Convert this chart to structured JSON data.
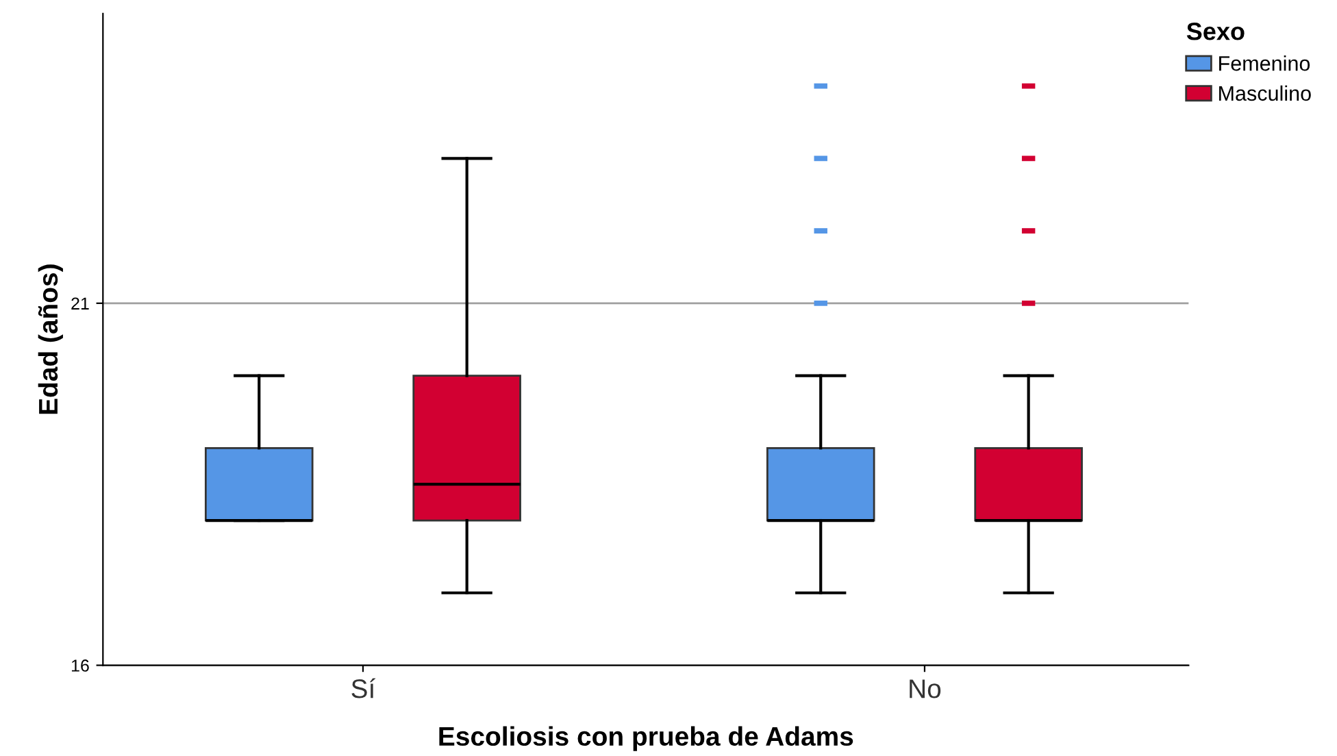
{
  "chart_data": {
    "type": "box",
    "xlabel": "Escoliosis con prueba de Adams",
    "ylabel": "Edad (años)",
    "legend_title": "Sexo",
    "categories": [
      "Sí",
      "No"
    ],
    "ylim": [
      16,
      25
    ],
    "yticks": [
      16,
      21
    ],
    "grid": "y",
    "legend": "top right",
    "series": [
      {
        "name": "Femenino",
        "color": "#5596e6",
        "boxes": [
          {
            "low": 18,
            "q1": 18,
            "median": 18,
            "q3": 19,
            "high": 20
          },
          {
            "low": 17,
            "q1": 18,
            "median": 18,
            "q3": 19,
            "high": 20,
            "outliers": [
              21,
              22,
              23,
              24
            ]
          }
        ]
      },
      {
        "name": "Masculino",
        "color": "#d20032",
        "boxes": [
          {
            "low": 17,
            "q1": 18,
            "median": 18.5,
            "q3": 20,
            "high": 23
          },
          {
            "low": 17,
            "q1": 18,
            "median": 18,
            "q3": 19,
            "high": 20,
            "outliers": [
              21,
              22,
              23,
              24
            ]
          }
        ]
      }
    ]
  }
}
